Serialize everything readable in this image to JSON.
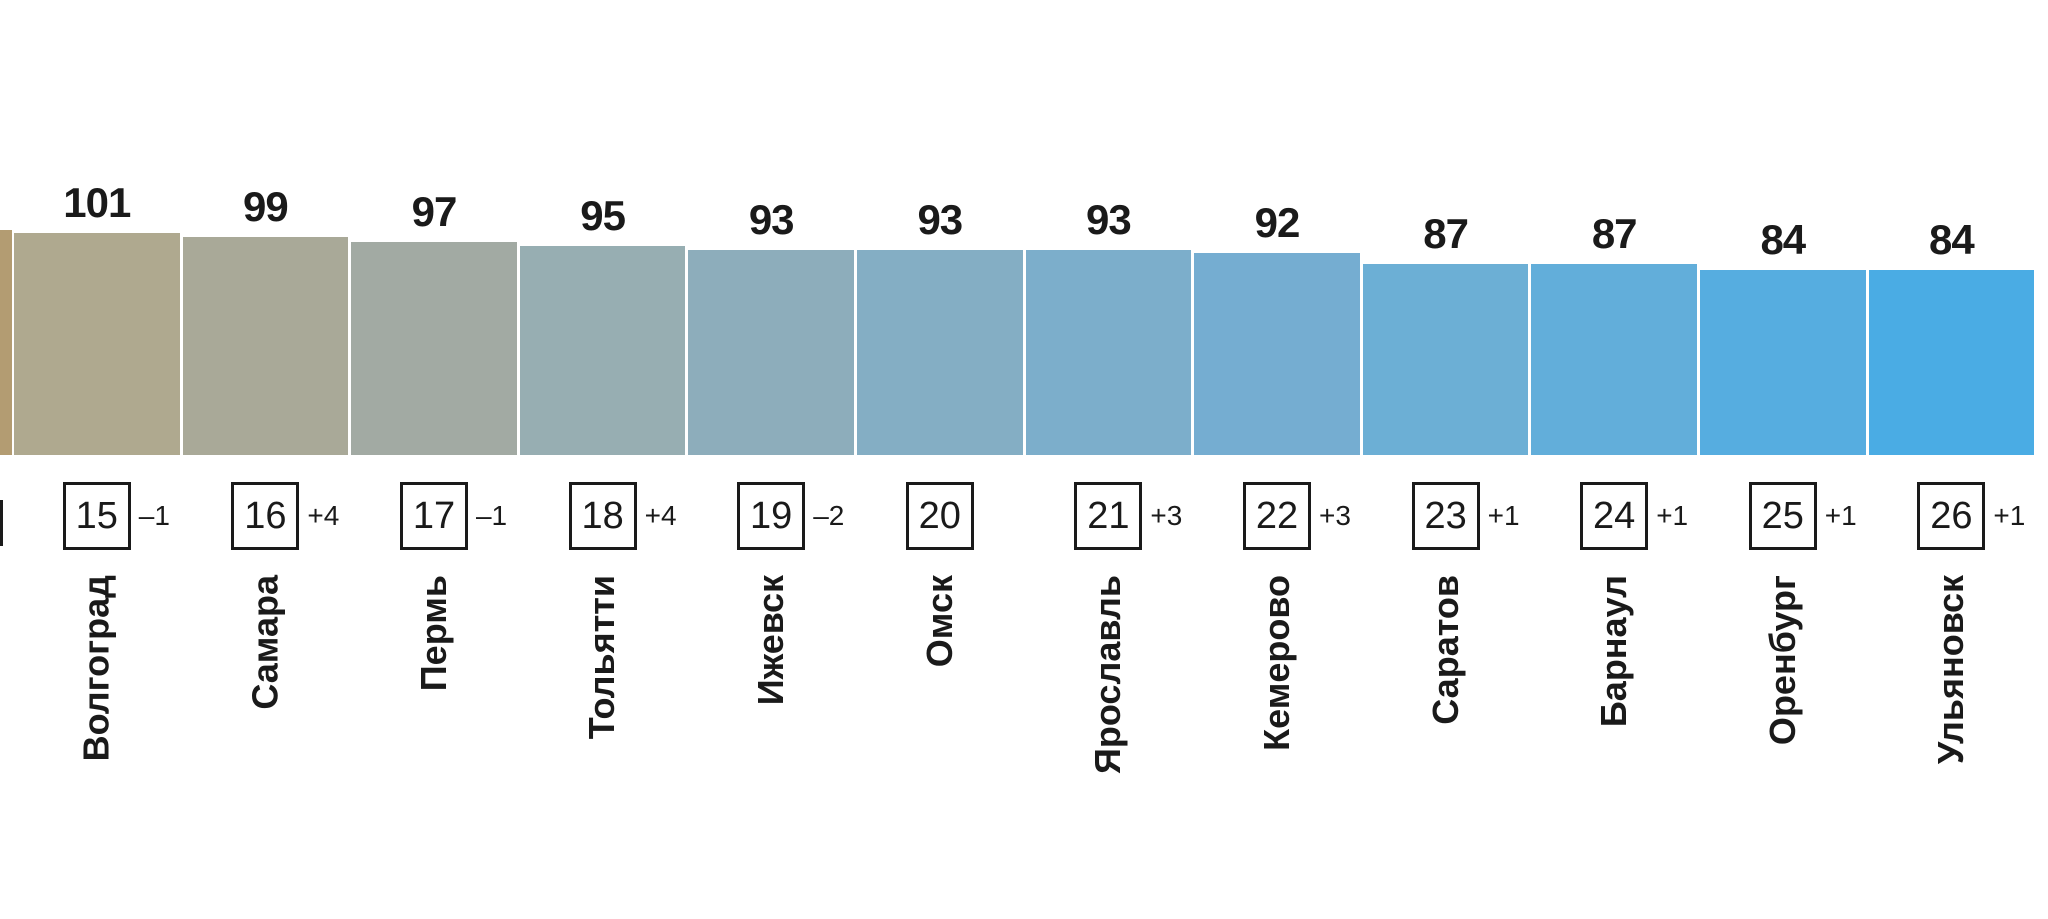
{
  "chart_data": {
    "type": "bar",
    "categories": [
      "Волгоград",
      "Самара",
      "Пермь",
      "Тольятти",
      "Ижевск",
      "Омск",
      "Ярославль",
      "Кемерово",
      "Саратов",
      "Барнаул",
      "Оренбург",
      "Ульяновск"
    ],
    "values": [
      101,
      99,
      97,
      95,
      93,
      93,
      93,
      92,
      87,
      87,
      84,
      84
    ],
    "ranks": [
      "15",
      "16",
      "17",
      "18",
      "19",
      "20",
      "21",
      "22",
      "23",
      "24",
      "25",
      "26"
    ],
    "rank_changes": [
      "–1",
      "+4",
      "–1",
      "+4",
      "–2",
      "",
      "+3",
      "+3",
      "+1",
      "+1",
      "+1",
      "+1"
    ],
    "bar_colors": [
      "#afa98f",
      "#a9a998",
      "#a2aaa3",
      "#97aeb2",
      "#8dadbb",
      "#84aec4",
      "#7caecb",
      "#75add1",
      "#6cafd5",
      "#62aeda",
      "#56ade0",
      "#4aace4"
    ],
    "left_partial_bar_color": "#b39c72",
    "value_labels_position": "above-bars",
    "grid": false,
    "legend": false,
    "axes_hidden": true
  }
}
